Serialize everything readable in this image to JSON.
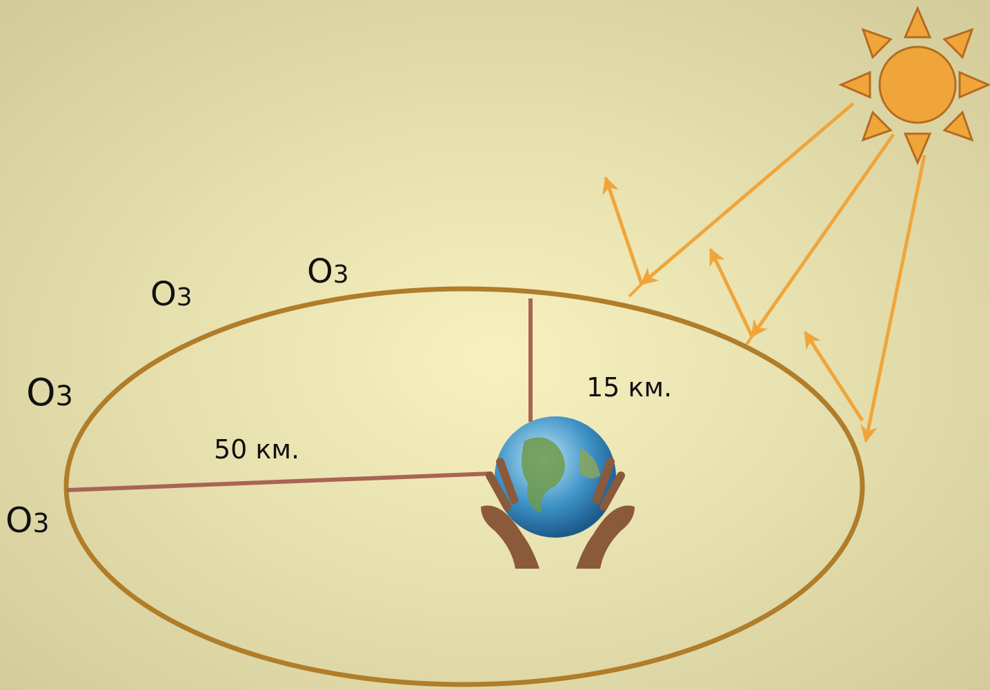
{
  "ozone_labels": [
    {
      "symbol": "O",
      "index": "3"
    },
    {
      "symbol": "O",
      "index": "3"
    },
    {
      "symbol": "O",
      "index": "3"
    },
    {
      "symbol": "O",
      "index": "3"
    }
  ],
  "distances": {
    "stratosphere": "50 км.",
    "troposphere": "15 км."
  }
}
